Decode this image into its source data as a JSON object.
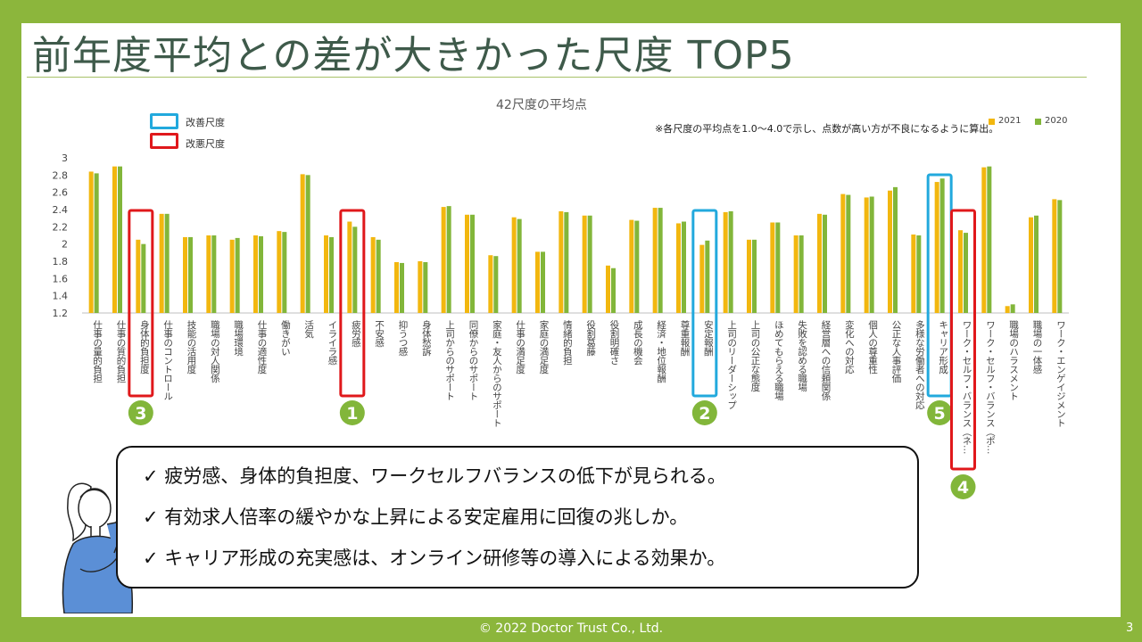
{
  "title": "前年度平均との差が大きかった尺度 TOP5",
  "legend_boxes": [
    {
      "label": "改善尺度",
      "color": "#22a9dd"
    },
    {
      "label": "改悪尺度",
      "color": "#e0181b"
    }
  ],
  "chart_data": {
    "type": "bar",
    "title": "42尺度の平均点",
    "note": "※各尺度の平均点を1.0～4.0で示し、点数が高い方が不良になるように算出。",
    "ylim": [
      1.2,
      3
    ],
    "yticks": [
      "3",
      "2.8",
      "2.6",
      "2.4",
      "2.2",
      "2",
      "1.8",
      "1.6",
      "1.4",
      "1.2"
    ],
    "series": [
      {
        "name": "2021",
        "color": "#f2b70f",
        "values": [
          2.84,
          2.9,
          2.05,
          2.35,
          2.08,
          2.1,
          2.05,
          2.1,
          2.15,
          2.81,
          2.1,
          2.26,
          2.08,
          1.79,
          1.8,
          2.43,
          2.34,
          1.87,
          2.31,
          1.91,
          2.38,
          2.33,
          1.75,
          2.28,
          2.42,
          2.24,
          1.99,
          2.37,
          2.05,
          2.25,
          2.1,
          2.35,
          2.58,
          2.54,
          2.62,
          2.11,
          2.72,
          2.16,
          2.89,
          1.28,
          2.31,
          2.52
        ]
      },
      {
        "name": "2020",
        "color": "#82b63a",
        "values": [
          2.82,
          2.9,
          2.0,
          2.35,
          2.08,
          2.1,
          2.07,
          2.09,
          2.14,
          2.8,
          2.08,
          2.2,
          2.05,
          1.78,
          1.79,
          2.44,
          2.34,
          1.86,
          2.29,
          1.91,
          2.37,
          2.33,
          1.72,
          2.27,
          2.42,
          2.26,
          2.04,
          2.38,
          2.05,
          2.25,
          2.1,
          2.34,
          2.57,
          2.55,
          2.66,
          2.1,
          2.76,
          2.13,
          2.9,
          1.3,
          2.33,
          2.51
        ]
      }
    ],
    "categories": [
      "仕事の量的負担",
      "仕事の質的負担",
      "身体的負担度",
      "仕事のコントロール",
      "技能の活用度",
      "職場の対人関係",
      "職場環境",
      "仕事の適性度",
      "働きがい",
      "活気",
      "イライラ感",
      "疲労感",
      "不安感",
      "抑うつ感",
      "身体愁訴",
      "上司からのサポート",
      "同僚からのサポート",
      "家庭・友人からのサポート",
      "仕事の満足度",
      "家庭の満足度",
      "情緒的負担",
      "役割葛藤",
      "役割明確さ",
      "成長の機会",
      "経済・地位報酬",
      "尊重報酬",
      "安定報酬",
      "上司のリーダーシップ",
      "上司の公正な態度",
      "ほめてもらえる職場",
      "失敗を認める職場",
      "経営層への信頼関係",
      "変化への対応",
      "個人の尊重性",
      "公正な人事評価",
      "多様な労働者への対応",
      "キャリア形成",
      "ワーク・セルフ・バランス（ネ…",
      "ワーク・セルフ・バランス（ポ…",
      "職場のハラスメント",
      "職場の一体感",
      "ワーク・エンゲイジメント"
    ],
    "highlights": [
      {
        "index": 2,
        "type": "worse",
        "rank": "3"
      },
      {
        "index": 11,
        "type": "worse",
        "rank": "1"
      },
      {
        "index": 26,
        "type": "better",
        "rank": "2"
      },
      {
        "index": 36,
        "type": "better",
        "rank": "5"
      },
      {
        "index": 37,
        "type": "worse",
        "rank": "4"
      }
    ]
  },
  "callout": {
    "bullets": [
      "✓ 疲労感、身体的負担度、ワークセルフバランスの低下が見られる。",
      "✓ 有効求人倍率の緩やかな上昇による安定雇用に回復の兆しか。",
      "✓ キャリア形成の充実感は、オンライン研修等の導入による効果か。"
    ]
  },
  "footer": "© 2022 Doctor Trust Co., Ltd.",
  "page_number": "3"
}
